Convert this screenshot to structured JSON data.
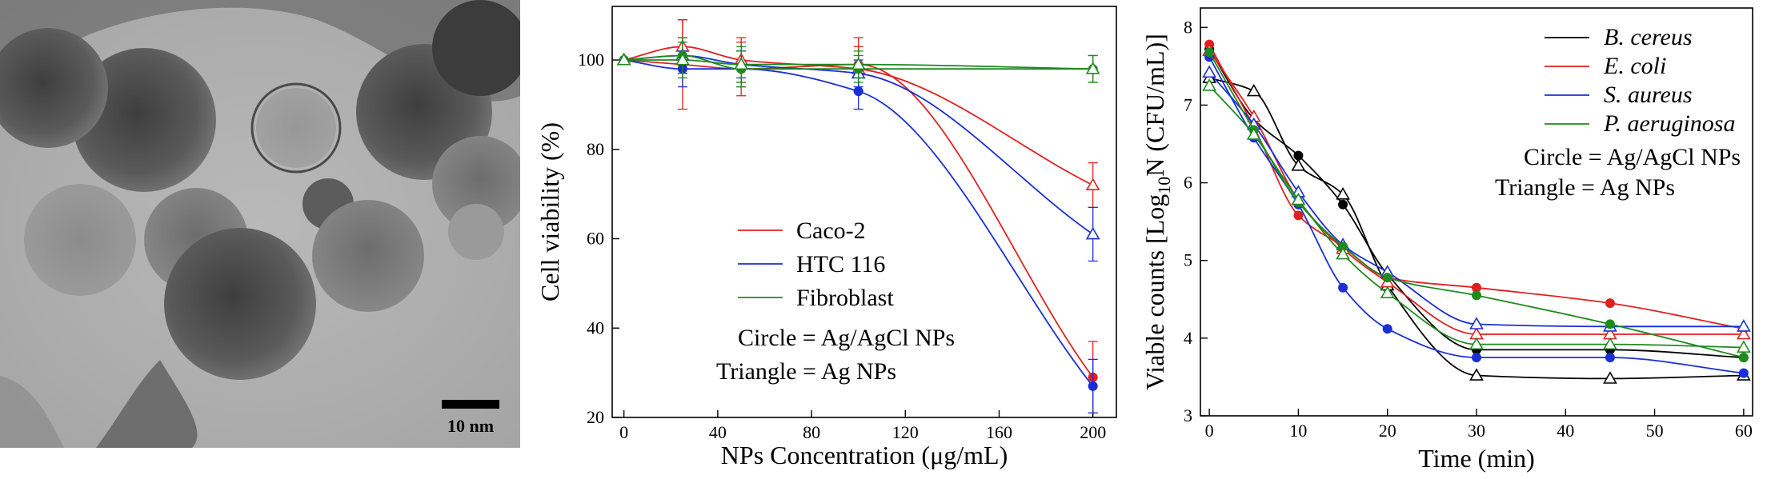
{
  "tem_image": {
    "scale_bar_label": "10 nm"
  },
  "chart_data": [
    {
      "type": "line",
      "title": "",
      "xlabel": "NPs Concentration (μg/mL)",
      "ylabel": "Cell viability (%)",
      "xlim": [
        -5,
        210
      ],
      "ylim": [
        20,
        112
      ],
      "xticks": [
        0,
        40,
        80,
        120,
        160,
        200
      ],
      "yticks": [
        20,
        40,
        60,
        80,
        100
      ],
      "x": [
        0,
        25,
        50,
        100,
        200
      ],
      "legend_position": "bottom-center",
      "legend_notes": [
        "Circle = Ag/AgCl NPs",
        "Triangle = Ag NPs"
      ],
      "series": [
        {
          "name": "Caco-2",
          "color": "#e02020",
          "marker": "circle",
          "values": [
            100,
            99,
            98,
            99,
            29
          ],
          "errors": [
            0,
            10,
            6,
            6,
            8
          ]
        },
        {
          "name": "Caco-2",
          "color": "#e02020",
          "marker": "triangle",
          "values": [
            100,
            103,
            100,
            98,
            72
          ],
          "errors": [
            0,
            6,
            5,
            5,
            5
          ]
        },
        {
          "name": "HTC 116",
          "color": "#1a2fd6",
          "marker": "circle",
          "values": [
            100,
            98,
            98,
            93,
            27
          ],
          "errors": [
            0,
            4,
            4,
            4,
            6
          ]
        },
        {
          "name": "HTC 116",
          "color": "#1a2fd6",
          "marker": "triangle",
          "values": [
            100,
            101,
            99,
            97,
            61
          ],
          "errors": [
            0,
            4,
            3,
            3,
            6
          ]
        },
        {
          "name": "Fibroblast",
          "color": "#1f8a1f",
          "marker": "circle",
          "values": [
            100,
            101,
            98,
            98,
            98
          ],
          "errors": [
            0,
            4,
            4,
            3,
            3
          ]
        },
        {
          "name": "Fibroblast",
          "color": "#1f8a1f",
          "marker": "triangle",
          "values": [
            100,
            100,
            99,
            99,
            98
          ],
          "errors": [
            0,
            4,
            4,
            3,
            3
          ]
        }
      ]
    },
    {
      "type": "line",
      "title": "",
      "xlabel": "Time (min)",
      "ylabel_parts": [
        "Viable counts [Log",
        "10",
        "N (CFU/mL)]"
      ],
      "xlim": [
        -1,
        61
      ],
      "ylim": [
        3,
        8.25
      ],
      "xticks": [
        0,
        10,
        20,
        30,
        40,
        50,
        60
      ],
      "yticks": [
        3,
        4,
        5,
        6,
        7,
        8
      ],
      "x": [
        0,
        5,
        10,
        15,
        20,
        30,
        45,
        60
      ],
      "legend_position": "top-right",
      "legend_notes": [
        "Circle = Ag/AgCl NPs",
        "Triangle = Ag NPs"
      ],
      "series": [
        {
          "name": "B. cereus",
          "color": "#000000",
          "marker": "circle",
          "values": [
            7.72,
            6.82,
            6.35,
            5.72,
            4.82,
            3.85,
            3.85,
            3.75
          ]
        },
        {
          "name": "B. cereus",
          "color": "#000000",
          "marker": "triangle",
          "values": [
            7.35,
            7.18,
            6.22,
            5.85,
            4.68,
            3.52,
            3.48,
            3.52
          ]
        },
        {
          "name": "E. coli",
          "color": "#e02020",
          "marker": "circle",
          "values": [
            7.78,
            6.72,
            5.58,
            5.18,
            4.78,
            4.65,
            4.45,
            4.12
          ]
        },
        {
          "name": "E. coli",
          "color": "#e02020",
          "marker": "triangle",
          "values": [
            7.7,
            6.85,
            5.78,
            5.15,
            4.72,
            4.05,
            4.05,
            4.05
          ]
        },
        {
          "name": "S. aureus",
          "color": "#1a2fd6",
          "marker": "circle",
          "values": [
            7.62,
            6.58,
            5.72,
            4.65,
            4.12,
            3.75,
            3.75,
            3.55
          ]
        },
        {
          "name": "S. aureus",
          "color": "#1a2fd6",
          "marker": "triangle",
          "values": [
            7.42,
            6.75,
            5.88,
            5.2,
            4.85,
            4.18,
            4.15,
            4.15
          ]
        },
        {
          "name": "P. aeruginosa",
          "color": "#1f8a1f",
          "marker": "circle",
          "values": [
            7.68,
            6.68,
            5.75,
            5.18,
            4.78,
            4.55,
            4.18,
            3.75
          ]
        },
        {
          "name": "P. aeruginosa",
          "color": "#1f8a1f",
          "marker": "triangle",
          "values": [
            7.25,
            6.62,
            5.78,
            5.08,
            4.58,
            3.92,
            3.92,
            3.88
          ]
        }
      ]
    }
  ]
}
